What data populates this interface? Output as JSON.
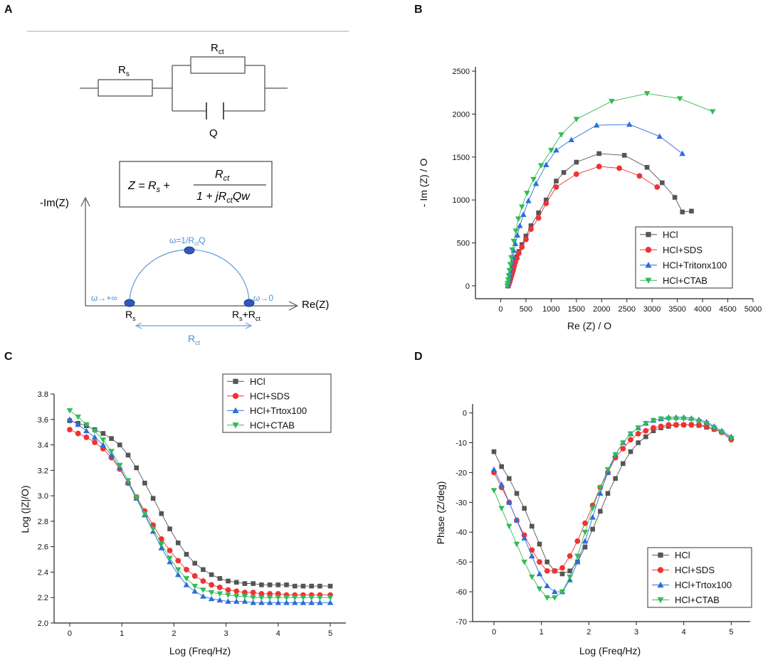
{
  "panels": {
    "a": "A",
    "b": "B",
    "c": "C",
    "d": "D"
  },
  "colors": {
    "HCl": "#555555",
    "SDS": "#ee3333",
    "Triton": "#2a6fdb",
    "CTAB": "#33bb55",
    "annot": "#4a90d9"
  },
  "circuit": {
    "rs_label": "R",
    "rs_sub": "s",
    "rct_label": "R",
    "rct_sub": "ct",
    "q_label": "Q",
    "equation": {
      "z": "Z = R",
      "s": "s",
      "plus": " + ",
      "num_r": "R",
      "num_ct": "ct",
      "den_a": "1 + jR",
      "den_ct": "ct",
      "den_b": "Qw"
    }
  },
  "nyquist_sketch": {
    "y_axis": "-Im(Z)",
    "x_axis": "Re(Z)",
    "omega_top": "ω=1/R",
    "omega_top_sub": "ct",
    "omega_top_tail": "Q",
    "omega_inf": "ω→+∞",
    "omega_zero": "ω→0",
    "rs": "R",
    "rs_sub": "s",
    "rs_rct": "R",
    "rs_rct_sub": "s",
    "rs_rct_plus": "+R",
    "rs_rct_sub2": "ct",
    "rct": "R",
    "rct_sub": "ct"
  },
  "chart_data": [
    {
      "id": "B",
      "type": "scatter",
      "xlabel": "Re (Z) / O",
      "ylabel": "- Im (Z) / O",
      "xlim": [
        -500,
        5000
      ],
      "ylim": [
        -150,
        2550
      ],
      "xticks": [
        0,
        500,
        1000,
        1500,
        2000,
        2500,
        3000,
        3500,
        4000,
        4500,
        5000
      ],
      "yticks": [
        0,
        500,
        1000,
        1500,
        2000,
        2500
      ],
      "legend_position": "bottom-right",
      "series": [
        {
          "name": "HCl",
          "marker": "square",
          "x": [
            150,
            165,
            180,
            195,
            210,
            225,
            240,
            255,
            270,
            290,
            320,
            360,
            420,
            500,
            600,
            750,
            900,
            1100,
            1250,
            1500,
            1950,
            2450,
            2900,
            3200,
            3450,
            3600,
            3780
          ],
          "y": [
            0,
            30,
            60,
            90,
            120,
            150,
            180,
            210,
            250,
            290,
            340,
            400,
            480,
            580,
            700,
            850,
            1000,
            1220,
            1320,
            1440,
            1540,
            1520,
            1380,
            1200,
            1030,
            860,
            870
          ]
        },
        {
          "name": "HCl+SDS",
          "marker": "circle",
          "x": [
            150,
            165,
            180,
            195,
            210,
            225,
            240,
            255,
            270,
            290,
            320,
            360,
            420,
            500,
            600,
            750,
            900,
            1100,
            1500,
            1950,
            2350,
            2750,
            3100
          ],
          "y": [
            0,
            25,
            50,
            80,
            110,
            140,
            170,
            200,
            235,
            275,
            320,
            380,
            450,
            540,
            660,
            790,
            960,
            1150,
            1300,
            1390,
            1370,
            1280,
            1150
          ]
        },
        {
          "name": "HCl+Tritonx100",
          "marker": "triangle-up",
          "x": [
            140,
            150,
            160,
            175,
            190,
            205,
            220,
            240,
            260,
            290,
            330,
            380,
            450,
            550,
            700,
            900,
            1100,
            1400,
            1900,
            2550,
            3150,
            3600
          ],
          "y": [
            0,
            30,
            70,
            110,
            160,
            210,
            270,
            340,
            410,
            490,
            590,
            700,
            830,
            990,
            1190,
            1410,
            1580,
            1700,
            1870,
            1880,
            1740,
            1540
          ]
        },
        {
          "name": "HCl+CTAB",
          "marker": "triangle-down",
          "x": [
            130,
            140,
            150,
            160,
            175,
            190,
            210,
            230,
            260,
            300,
            350,
            420,
            520,
            650,
            800,
            1000,
            1200,
            1500,
            2200,
            2900,
            3550,
            4200
          ],
          "y": [
            0,
            30,
            70,
            120,
            180,
            250,
            330,
            420,
            520,
            640,
            780,
            920,
            1080,
            1240,
            1400,
            1580,
            1760,
            1940,
            2150,
            2240,
            2180,
            2030
          ]
        }
      ]
    },
    {
      "id": "C",
      "type": "scatter",
      "xlabel": "Log (Freq/Hz)",
      "ylabel": "Log (|Z|/O)",
      "xlim": [
        -0.3,
        5.3
      ],
      "ylim": [
        2.0,
        3.8
      ],
      "xticks": [
        0,
        1,
        2,
        3,
        4,
        5
      ],
      "yticks": [
        2.0,
        2.2,
        2.4,
        2.6,
        2.8,
        3.0,
        3.2,
        3.4,
        3.6,
        3.8
      ],
      "legend_position": "top-right",
      "x": [
        0,
        0.16,
        0.32,
        0.48,
        0.64,
        0.8,
        0.96,
        1.12,
        1.28,
        1.44,
        1.6,
        1.76,
        1.92,
        2.08,
        2.24,
        2.4,
        2.56,
        2.72,
        2.88,
        3.04,
        3.2,
        3.36,
        3.52,
        3.68,
        3.84,
        4.0,
        4.16,
        4.32,
        4.48,
        4.64,
        4.8,
        5.0
      ],
      "series": [
        {
          "name": "HCl",
          "marker": "square",
          "y": [
            3.59,
            3.57,
            3.55,
            3.52,
            3.49,
            3.45,
            3.4,
            3.32,
            3.22,
            3.1,
            2.98,
            2.86,
            2.74,
            2.63,
            2.54,
            2.47,
            2.42,
            2.38,
            2.35,
            2.33,
            2.32,
            2.31,
            2.31,
            2.3,
            2.3,
            2.3,
            2.3,
            2.29,
            2.29,
            2.29,
            2.29,
            2.29
          ]
        },
        {
          "name": "HCl+SDS",
          "marker": "circle",
          "y": [
            3.52,
            3.49,
            3.46,
            3.42,
            3.37,
            3.3,
            3.21,
            3.1,
            2.99,
            2.88,
            2.77,
            2.66,
            2.57,
            2.49,
            2.42,
            2.37,
            2.33,
            2.3,
            2.28,
            2.26,
            2.25,
            2.24,
            2.24,
            2.23,
            2.23,
            2.23,
            2.22,
            2.22,
            2.22,
            2.22,
            2.22,
            2.22
          ]
        },
        {
          "name": "HCl+Trtox100",
          "marker": "triangle-up",
          "y": [
            3.6,
            3.56,
            3.51,
            3.46,
            3.4,
            3.32,
            3.22,
            3.1,
            2.98,
            2.85,
            2.72,
            2.59,
            2.48,
            2.38,
            2.3,
            2.25,
            2.21,
            2.19,
            2.18,
            2.17,
            2.17,
            2.17,
            2.16,
            2.16,
            2.16,
            2.16,
            2.16,
            2.16,
            2.16,
            2.16,
            2.16,
            2.16
          ]
        },
        {
          "name": "HCl+CTAB",
          "marker": "triangle-down",
          "y": [
            3.67,
            3.62,
            3.56,
            3.51,
            3.44,
            3.35,
            3.24,
            3.12,
            2.99,
            2.86,
            2.74,
            2.62,
            2.51,
            2.42,
            2.35,
            2.29,
            2.26,
            2.24,
            2.23,
            2.22,
            2.21,
            2.21,
            2.2,
            2.2,
            2.2,
            2.2,
            2.2,
            2.2,
            2.2,
            2.2,
            2.2,
            2.2
          ]
        }
      ]
    },
    {
      "id": "D",
      "type": "scatter",
      "xlabel": "Log (Freq/Hz)",
      "ylabel": "Phase (Z/deg)",
      "xlim": [
        -0.45,
        5.4
      ],
      "ylim": [
        -70,
        3
      ],
      "xticks": [
        0,
        1,
        2,
        3,
        4,
        5
      ],
      "yticks": [
        0,
        -10,
        -20,
        -30,
        -40,
        -50,
        -60,
        -70
      ],
      "legend_position": "bottom-right",
      "x": [
        0,
        0.16,
        0.32,
        0.48,
        0.64,
        0.8,
        0.96,
        1.12,
        1.28,
        1.44,
        1.6,
        1.76,
        1.92,
        2.08,
        2.24,
        2.4,
        2.56,
        2.72,
        2.88,
        3.04,
        3.2,
        3.36,
        3.52,
        3.68,
        3.84,
        4.0,
        4.16,
        4.32,
        4.48,
        4.64,
        4.8,
        5.0
      ],
      "series": [
        {
          "name": "HCl",
          "marker": "square",
          "y": [
            -13,
            -18,
            -22,
            -27,
            -32,
            -38,
            -44,
            -50,
            -53,
            -54,
            -53,
            -50,
            -45,
            -39,
            -33,
            -27,
            -22,
            -17,
            -13,
            -10,
            -8,
            -6,
            -5,
            -4.5,
            -4,
            -4,
            -4,
            -4.2,
            -4.8,
            -5.5,
            -6.5,
            -8.5
          ]
        },
        {
          "name": "HCl+SDS",
          "marker": "circle",
          "y": [
            -20,
            -25,
            -30,
            -36,
            -41,
            -46,
            -50,
            -53,
            -53,
            -52,
            -48,
            -43,
            -37,
            -31,
            -25,
            -20,
            -15,
            -12,
            -9,
            -7,
            -6,
            -5,
            -4.5,
            -4,
            -4,
            -4,
            -4,
            -4,
            -4.5,
            -5.5,
            -6.5,
            -9
          ]
        },
        {
          "name": "HCl+Trtox100",
          "marker": "triangle-up",
          "y": [
            -19,
            -24,
            -30,
            -36,
            -42,
            -48,
            -54,
            -58,
            -60,
            -60,
            -56,
            -50,
            -43,
            -35,
            -27,
            -20,
            -14,
            -10,
            -7,
            -5,
            -3.5,
            -2.5,
            -2,
            -1.5,
            -1.5,
            -1.5,
            -1.8,
            -2.3,
            -3,
            -4.5,
            -6,
            -8
          ]
        },
        {
          "name": "HCl+CTAB",
          "marker": "triangle-down",
          "y": [
            -26,
            -32,
            -38,
            -44,
            -50,
            -55,
            -59,
            -62,
            -62,
            -60,
            -55,
            -48,
            -40,
            -32,
            -25,
            -19,
            -14,
            -10,
            -7,
            -5,
            -3.5,
            -2.5,
            -2,
            -2,
            -2,
            -2,
            -2.2,
            -2.8,
            -3.5,
            -5,
            -6.5,
            -8.5
          ]
        }
      ]
    }
  ]
}
